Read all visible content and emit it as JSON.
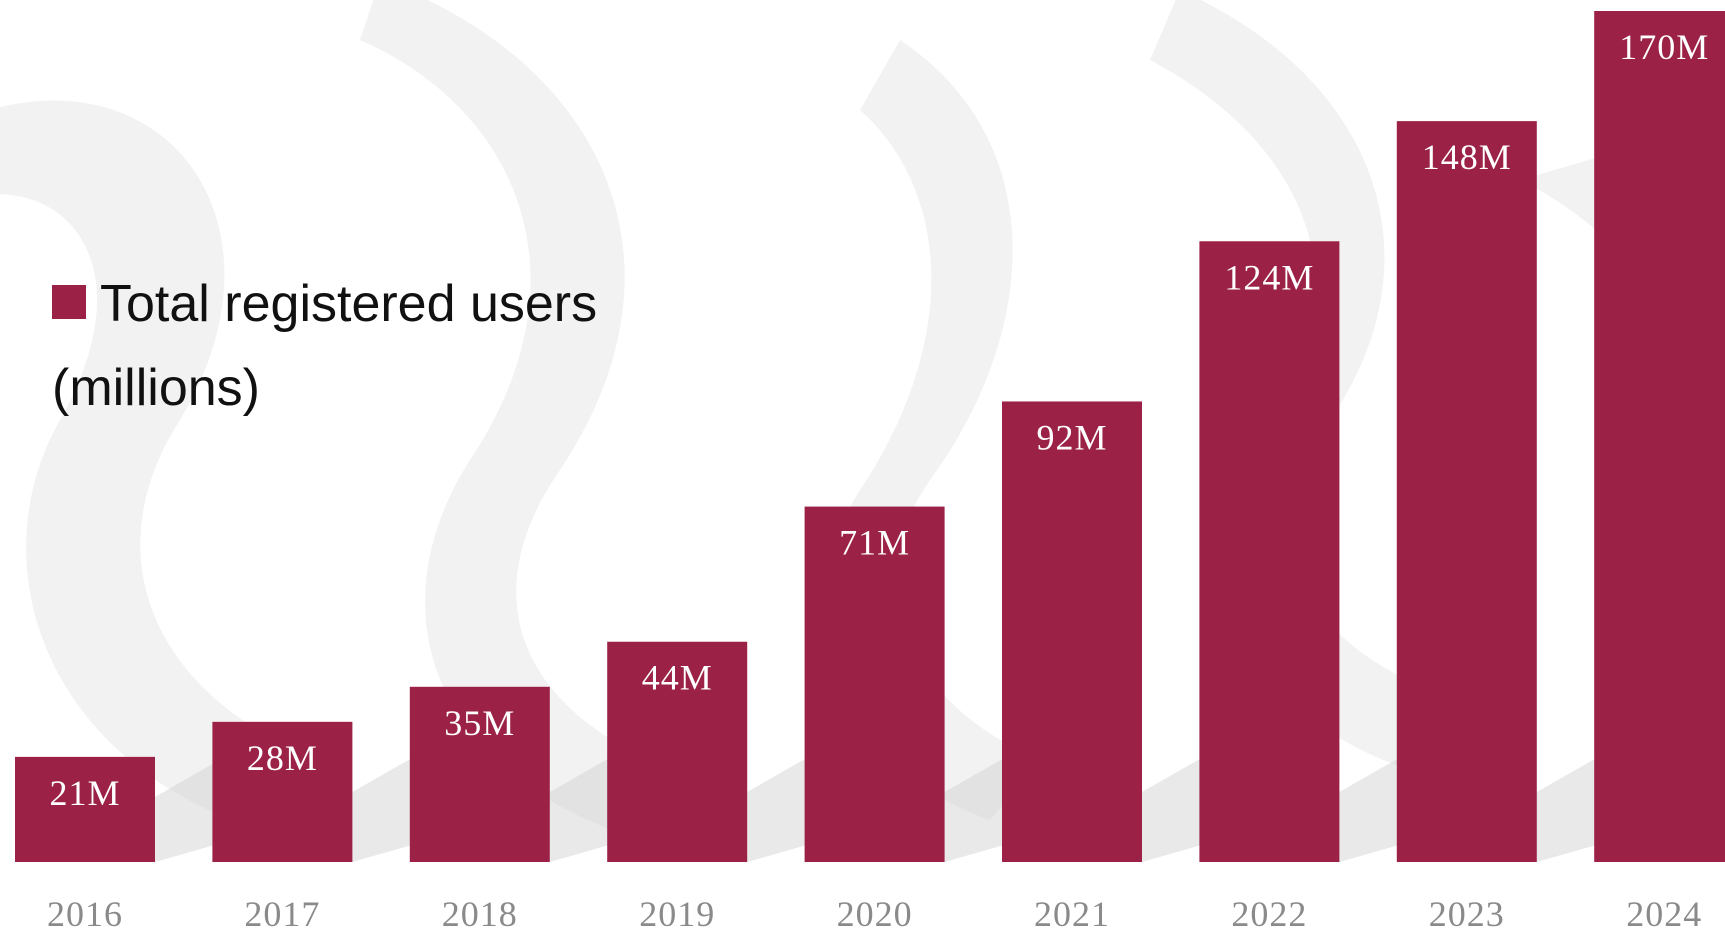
{
  "colors": {
    "bar": "#9b2246",
    "tick_text": "#8a8a8a",
    "legend_text": "#111111",
    "swirl": "#f2f2f2",
    "shadow": "#cfcfcf"
  },
  "legend": {
    "label": "Total registered users (millions)"
  },
  "chart_data": {
    "type": "bar",
    "categories": [
      "2016",
      "2017",
      "2018",
      "2019",
      "2020",
      "2021",
      "2022",
      "2023",
      "2024"
    ],
    "series": [
      {
        "name": "Total registered users (millions)",
        "values": [
          21,
          28,
          35,
          44,
          71,
          92,
          124,
          148,
          170
        ],
        "labels": [
          "21M",
          "28M",
          "35M",
          "44M",
          "71M",
          "92M",
          "124M",
          "148M",
          "170M"
        ]
      }
    ],
    "ylim": [
      0,
      170
    ],
    "grid": false,
    "legend_position": "left"
  }
}
